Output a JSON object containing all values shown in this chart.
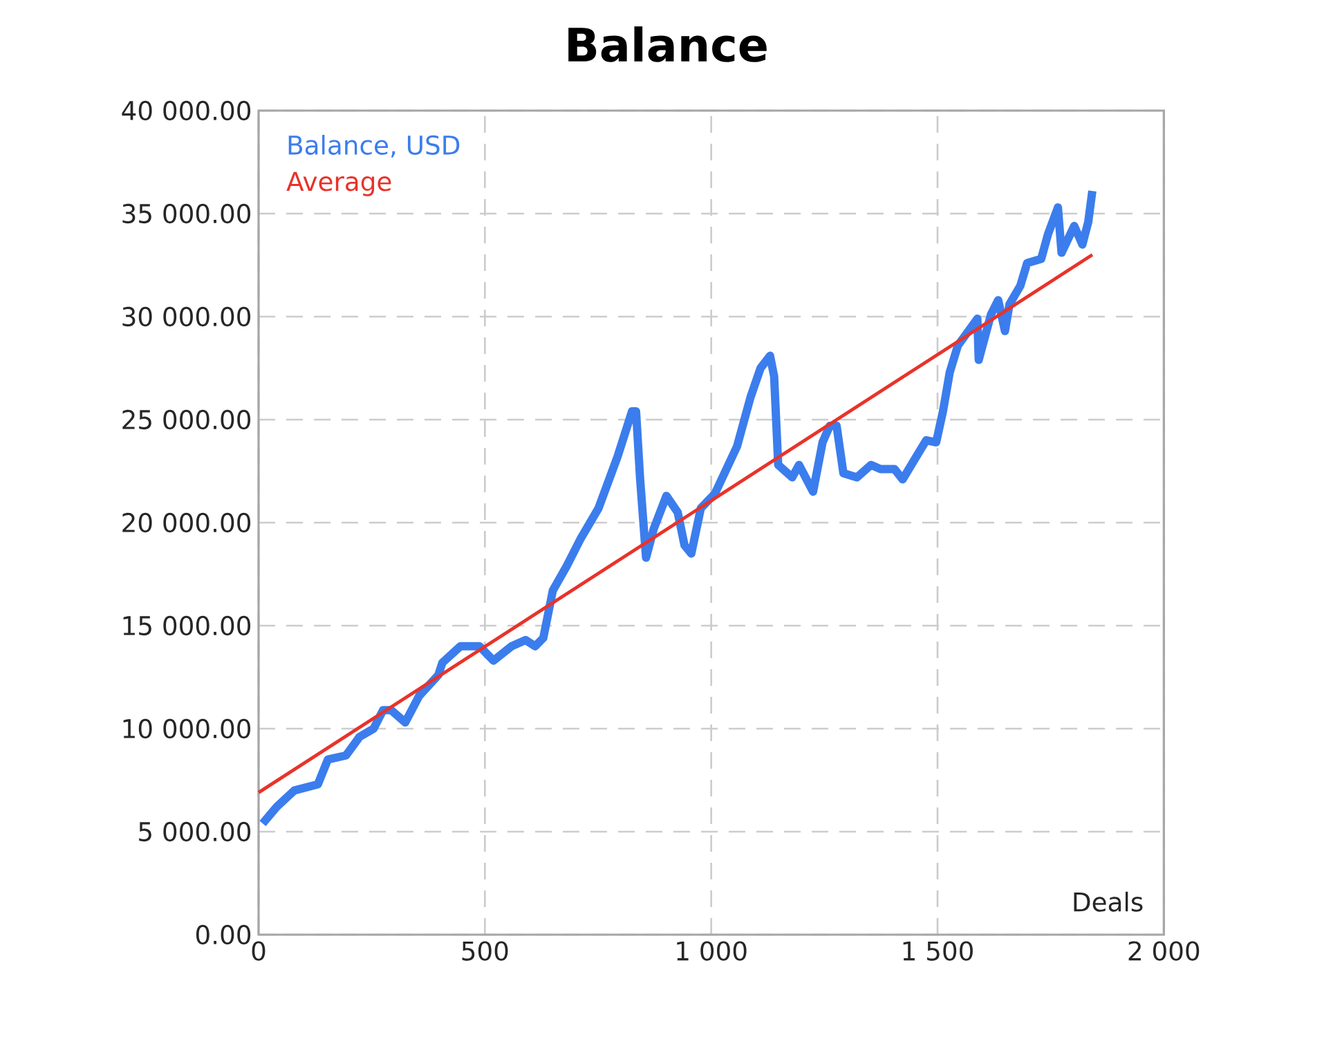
{
  "chart_data": {
    "type": "line",
    "title": "Balance",
    "xlabel": "Deals",
    "xlim": [
      0,
      2000
    ],
    "xticks": [
      0,
      500,
      {
        "value": 1000,
        "label": "1 000"
      },
      {
        "value": 1500,
        "label": "1 500"
      },
      {
        "value": 2000,
        "label": "2 000"
      }
    ],
    "ylim": [
      0,
      40000
    ],
    "yticks": [
      {
        "value": 0,
        "label": "0.00"
      },
      {
        "value": 5000,
        "label": "5 000.00"
      },
      {
        "value": 10000,
        "label": "10 000.00"
      },
      {
        "value": 15000,
        "label": "15 000.00"
      },
      {
        "value": 20000,
        "label": "20 000.00"
      },
      {
        "value": 25000,
        "label": "25 000.00"
      },
      {
        "value": 30000,
        "label": "30 000.00"
      },
      {
        "value": 35000,
        "label": "35 000.00"
      },
      {
        "value": 40000,
        "label": "40 000.00"
      }
    ],
    "grid": true,
    "legend": "top left",
    "line_style": "solid",
    "marker": "none",
    "series": [
      {
        "name": "Balance, USD",
        "color": "#3b7ded",
        "x": [
          9,
          40,
          79,
          131,
          153,
          193,
          223,
          254,
          275,
          293,
          324,
          355,
          397,
          406,
          446,
          488,
          519,
          559,
          590,
          611,
          629,
          650,
          681,
          711,
          751,
          793,
          825,
          834,
          843,
          856,
          873,
          901,
          926,
          941,
          956,
          977,
          1008,
          1057,
          1087,
          1109,
          1130,
          1139,
          1148,
          1179,
          1194,
          1225,
          1246,
          1262,
          1277,
          1292,
          1322,
          1353,
          1374,
          1405,
          1423,
          1453,
          1475,
          1497,
          1512,
          1527,
          1545,
          1588,
          1591,
          1618,
          1634,
          1649,
          1659,
          1683,
          1698,
          1729,
          1744,
          1766,
          1774,
          1802,
          1820,
          1833,
          1842
        ],
        "values": [
          5400,
          6200,
          7000,
          7300,
          8500,
          8700,
          9600,
          10000,
          10900,
          10900,
          10300,
          11600,
          12600,
          13200,
          14000,
          14000,
          13300,
          14000,
          14300,
          14000,
          14400,
          16700,
          17900,
          19200,
          20700,
          23200,
          25400,
          25400,
          22100,
          18300,
          19700,
          21300,
          20500,
          18900,
          18500,
          20700,
          21400,
          23700,
          26100,
          27500,
          28100,
          27100,
          22800,
          22200,
          22800,
          21500,
          23900,
          24700,
          24700,
          22400,
          22200,
          22800,
          22600,
          22600,
          22100,
          23200,
          24000,
          23900,
          25400,
          27300,
          28600,
          29900,
          27900,
          30100,
          30800,
          29300,
          30600,
          31500,
          32600,
          32800,
          34000,
          35300,
          33100,
          34400,
          33500,
          34600,
          36100
        ]
      },
      {
        "name": "Average",
        "color": "#e8332a",
        "x": [
          0,
          1842
        ],
        "values": [
          6900,
          33000
        ]
      }
    ]
  }
}
